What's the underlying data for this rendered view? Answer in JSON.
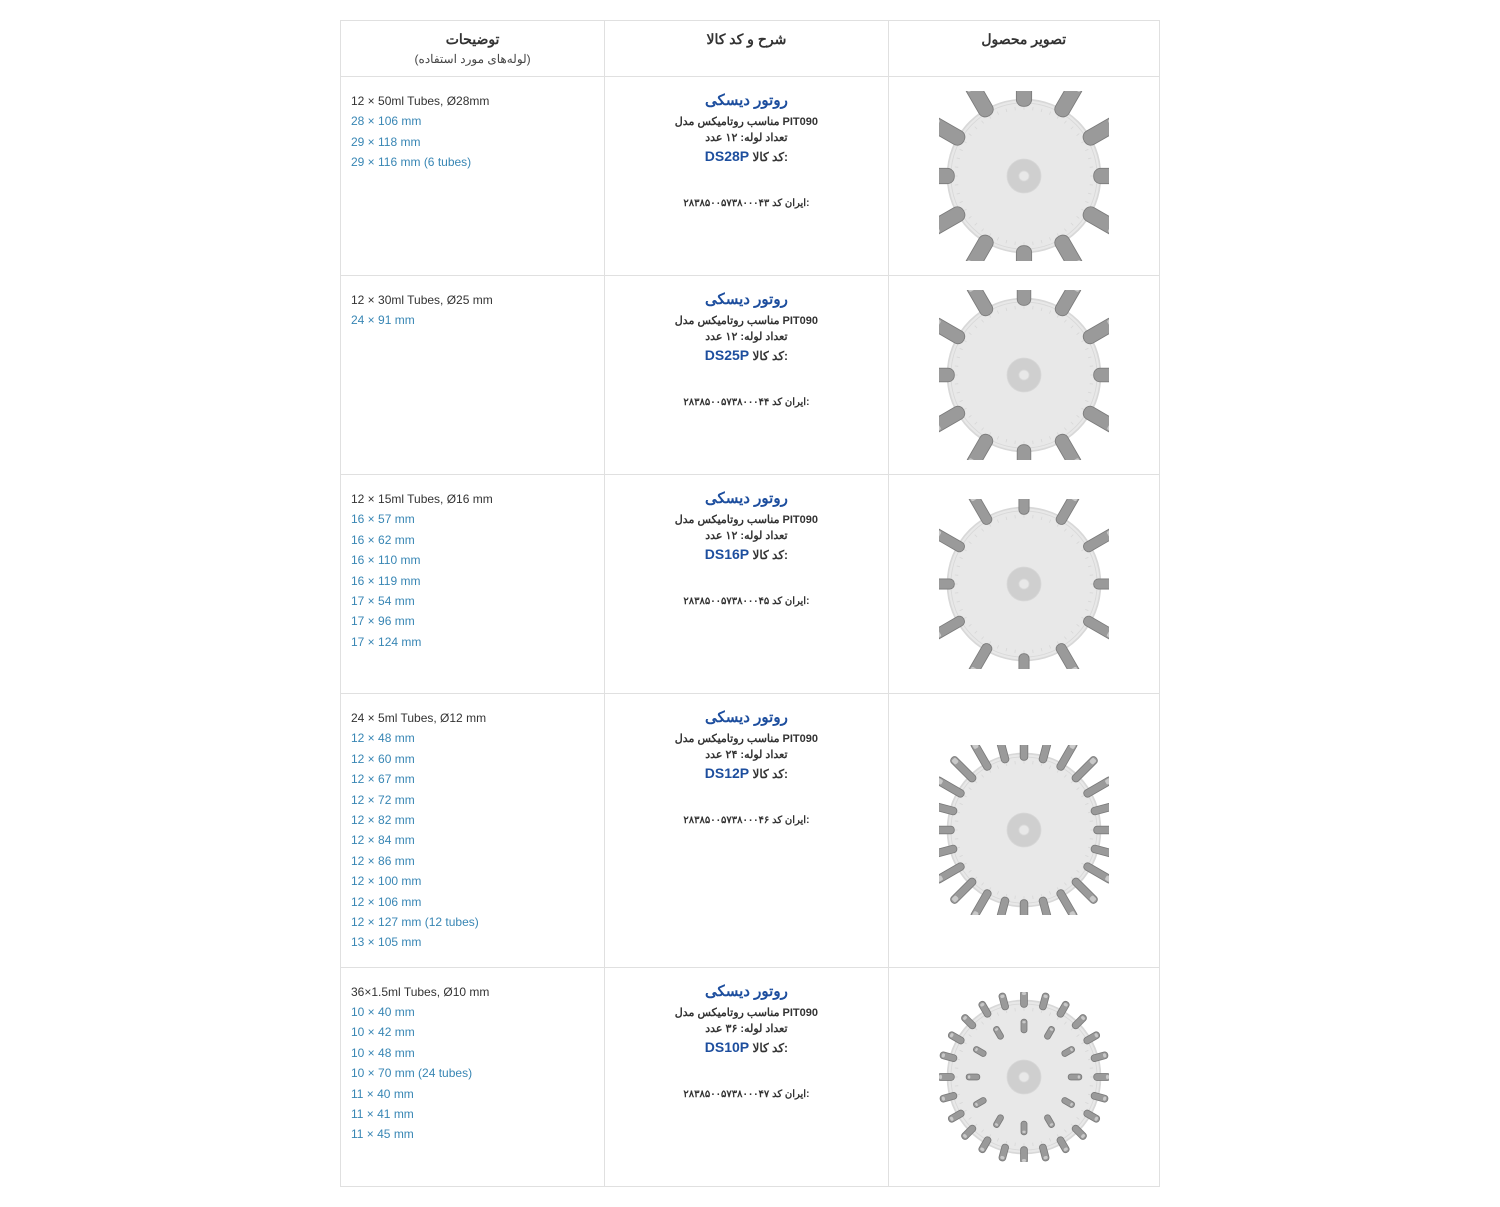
{
  "colors": {
    "border": "#e0e0e0",
    "text": "#333333",
    "link": "#3886b4",
    "brand": "#1d4e9e",
    "rotor_base": "#e8e8e8",
    "rotor_ring": "#d8d8d8",
    "tube_fill": "#9a9a9a",
    "tube_stroke": "#7a7a7a",
    "hub": "#cfcfcf"
  },
  "headers": {
    "notes_main": "توضیحات",
    "notes_sub": "(لوله‌های مورد استفاده)",
    "desc": "شرح و کد کالا",
    "image": "تصویر محصول"
  },
  "common": {
    "title": "روتور دیسکی",
    "suit_line": "مناسب روتامیکس مدل PIT090",
    "code_label": "کد کالا:",
    "iran_label": "ایران کد:"
  },
  "rows": [
    {
      "notes_main": "12 × 50ml Tubes, Ø28mm",
      "notes_links": [
        "28 × 106 mm",
        "29 × 118 mm",
        "29 × 116 mm (6 tubes)"
      ],
      "tube_count_line": "تعداد لوله: ۱۲ عدد",
      "code": "DS28P",
      "iran_code": "۲۸۳۸۵۰۰۵۷۳۸۰۰۰۴۳",
      "rotor": {
        "tubes": 12,
        "tube_w": 18,
        "tube_h": 46
      }
    },
    {
      "notes_main": "12 × 30ml Tubes, Ø25 mm",
      "notes_links": [
        "24 × 91 mm"
      ],
      "tube_count_line": "تعداد لوله: ۱۲ عدد",
      "code": "DS25P",
      "iran_code": "۲۸۳۸۵۰۰۵۷۳۸۰۰۰۴۴",
      "rotor": {
        "tubes": 12,
        "tube_w": 16,
        "tube_h": 44
      }
    },
    {
      "notes_main": "12 × 15ml Tubes, Ø16 mm",
      "notes_links": [
        "16 × 57 mm",
        "16 × 62 mm",
        "16 × 110 mm",
        "16 × 119 mm",
        "17 × 54 mm",
        "17 × 96 mm",
        "17 × 124 mm"
      ],
      "tube_count_line": "تعداد لوله: ۱۲ عدد",
      "code": "DS16P",
      "iran_code": "۲۸۳۸۵۰۰۵۷۳۸۰۰۰۴۵",
      "rotor": {
        "tubes": 12,
        "tube_w": 12,
        "tube_h": 42
      }
    },
    {
      "notes_main": "24 × 5ml Tubes, Ø12 mm",
      "notes_links": [
        "12 × 48 mm",
        "12 × 60 mm",
        "12 × 67 mm",
        "12 × 72 mm",
        "12 × 82 mm",
        "12 × 84 mm",
        "12 × 86 mm",
        "12 × 100 mm",
        "12 × 106 mm",
        "12 × 127 mm (12 tubes)",
        "13 × 105 mm"
      ],
      "tube_count_line": "تعداد لوله: ۲۴ عدد",
      "code": "DS12P",
      "iran_code": "۲۸۳۸۵۰۰۵۷۳۸۰۰۰۴۶",
      "rotor": {
        "tubes": 24,
        "tube_w": 9,
        "tube_h": 38
      }
    },
    {
      "notes_main": "36×1.5ml Tubes, Ø10 mm",
      "notes_links": [
        "10 × 40 mm",
        "10 × 42 mm",
        "10 × 48 mm",
        "10 × 70 mm (24 tubes)",
        "11 × 40 mm",
        "11 × 41 mm",
        "11 × 45 mm"
      ],
      "tube_count_line": "تعداد لوله: ۳۶ عدد",
      "code": "DS10P",
      "iran_code": "۲۸۳۸۵۰۰۵۷۳۸۰۰۰۴۷",
      "rotor": {
        "tubes": 36,
        "two_ring": true,
        "tube_w": 8,
        "tube_h": 20
      }
    }
  ]
}
